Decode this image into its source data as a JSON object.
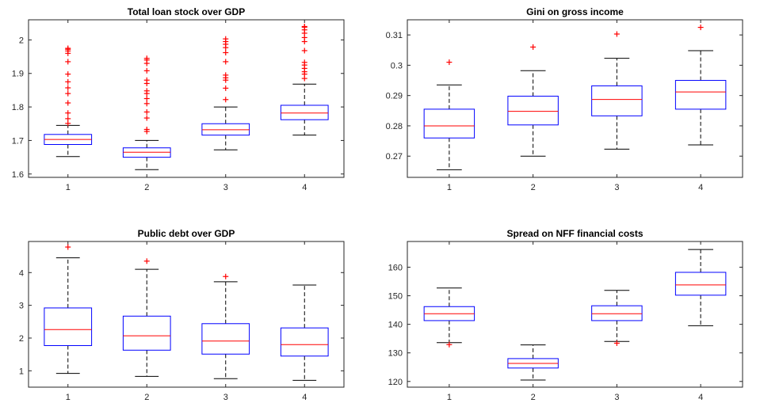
{
  "colors": {
    "box": "#0000ff",
    "median": "#ff0000",
    "whisker": "#000000",
    "outlier": "#ff0000",
    "axis": "#262626"
  },
  "chart_data": [
    {
      "type": "box",
      "title": "Total loan stock over GDP",
      "categories": [
        "1",
        "2",
        "3",
        "4"
      ],
      "ylim": [
        1.59,
        2.06
      ],
      "yticks": [
        1.6,
        1.7,
        1.8,
        1.9,
        2.0
      ],
      "ytick_labels": [
        "1.6",
        "1.7",
        "1.8",
        "1.9",
        "2"
      ],
      "boxes": [
        {
          "whisker_low": 1.652,
          "q1": 1.688,
          "median": 1.703,
          "q3": 1.718,
          "whisker_high": 1.745,
          "outliers": [
            1.751,
            1.765,
            1.782,
            1.812,
            1.84,
            1.857,
            1.875,
            1.898,
            1.935,
            1.96,
            1.967,
            1.972,
            1.975
          ]
        },
        {
          "whisker_low": 1.613,
          "q1": 1.65,
          "median": 1.665,
          "q3": 1.678,
          "whisker_high": 1.7,
          "outliers": [
            1.727,
            1.733,
            1.767,
            1.785,
            1.81,
            1.825,
            1.84,
            1.848,
            1.87,
            1.88,
            1.908,
            1.93,
            1.94,
            1.945
          ]
        },
        {
          "whisker_low": 1.672,
          "q1": 1.716,
          "median": 1.732,
          "q3": 1.75,
          "whisker_high": 1.8,
          "outliers": [
            1.822,
            1.856,
            1.88,
            1.887,
            1.895,
            1.935,
            1.962,
            1.977,
            1.987,
            1.995,
            2.003
          ]
        },
        {
          "whisker_low": 1.716,
          "q1": 1.762,
          "median": 1.782,
          "q3": 1.805,
          "whisker_high": 1.868,
          "outliers": [
            1.885,
            1.898,
            1.905,
            1.915,
            1.925,
            1.933,
            1.968,
            1.995,
            2.007,
            2.02,
            2.03,
            2.038,
            2.04
          ]
        }
      ]
    },
    {
      "type": "box",
      "title": "Gini on gross income",
      "categories": [
        "1",
        "2",
        "3",
        "4"
      ],
      "ylim": [
        0.263,
        0.315
      ],
      "yticks": [
        0.27,
        0.28,
        0.29,
        0.3,
        0.31
      ],
      "ytick_labels": [
        "0.27",
        "0.28",
        "0.29",
        "0.3",
        "0.31"
      ],
      "boxes": [
        {
          "whisker_low": 0.2655,
          "q1": 0.276,
          "median": 0.28,
          "q3": 0.2855,
          "whisker_high": 0.2935,
          "outliers": [
            0.301
          ]
        },
        {
          "whisker_low": 0.27,
          "q1": 0.2803,
          "median": 0.2848,
          "q3": 0.2898,
          "whisker_high": 0.2982,
          "outliers": [
            0.306
          ]
        },
        {
          "whisker_low": 0.2723,
          "q1": 0.2833,
          "median": 0.2887,
          "q3": 0.2932,
          "whisker_high": 0.3023,
          "outliers": [
            0.3103
          ]
        },
        {
          "whisker_low": 0.2737,
          "q1": 0.2855,
          "median": 0.2912,
          "q3": 0.295,
          "whisker_high": 0.3048,
          "outliers": [
            0.3125
          ]
        }
      ]
    },
    {
      "type": "box",
      "title": "Public debt over GDP",
      "categories": [
        "1",
        "2",
        "3",
        "4"
      ],
      "ylim": [
        0.5,
        4.95
      ],
      "yticks": [
        1,
        2,
        3,
        4
      ],
      "ytick_labels": [
        "1",
        "2",
        "3",
        "4"
      ],
      "boxes": [
        {
          "whisker_low": 0.92,
          "q1": 1.77,
          "median": 2.26,
          "q3": 2.92,
          "whisker_high": 4.45,
          "outliers": [
            4.78
          ]
        },
        {
          "whisker_low": 0.83,
          "q1": 1.63,
          "median": 2.07,
          "q3": 2.67,
          "whisker_high": 4.1,
          "outliers": [
            4.35
          ]
        },
        {
          "whisker_low": 0.76,
          "q1": 1.51,
          "median": 1.91,
          "q3": 2.44,
          "whisker_high": 3.72,
          "outliers": [
            3.88
          ]
        },
        {
          "whisker_low": 0.71,
          "q1": 1.45,
          "median": 1.8,
          "q3": 2.31,
          "whisker_high": 3.62,
          "outliers": []
        }
      ]
    },
    {
      "type": "box",
      "title": "Spread on NFF financial costs",
      "categories": [
        "1",
        "2",
        "3",
        "4"
      ],
      "ylim": [
        118,
        169
      ],
      "yticks": [
        120,
        130,
        140,
        150,
        160
      ],
      "ytick_labels": [
        "120",
        "130",
        "140",
        "150",
        "160"
      ],
      "boxes": [
        {
          "whisker_low": 133.6,
          "q1": 141.3,
          "median": 143.7,
          "q3": 146.2,
          "whisker_high": 152.7,
          "outliers": [
            132.9
          ]
        },
        {
          "whisker_low": 120.5,
          "q1": 124.7,
          "median": 126.3,
          "q3": 128.0,
          "whisker_high": 132.8,
          "outliers": []
        },
        {
          "whisker_low": 134.0,
          "q1": 141.3,
          "median": 143.7,
          "q3": 146.5,
          "whisker_high": 151.9,
          "outliers": [
            133.4
          ]
        },
        {
          "whisker_low": 139.5,
          "q1": 150.2,
          "median": 153.8,
          "q3": 158.2,
          "whisker_high": 166.2,
          "outliers": []
        }
      ]
    }
  ]
}
